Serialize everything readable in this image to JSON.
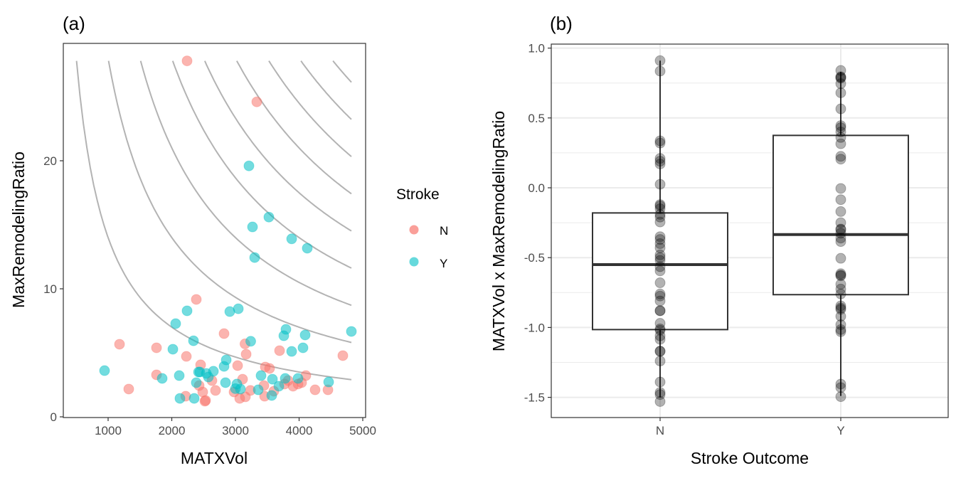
{
  "chart_data": [
    {
      "panel": "(a)",
      "type": "scatter",
      "title": "(a)",
      "xlabel": "MATXVol",
      "ylabel": "MaxRemodelingRatio",
      "xlim": [
        300,
        5050
      ],
      "ylim": [
        -0.3,
        29.4
      ],
      "xticks": [
        1000,
        2000,
        3000,
        4000,
        5000
      ],
      "yticks": [
        0,
        10,
        20
      ],
      "grid": false,
      "contours": {
        "description": "hyperbolic contours of MATXVol x MaxRemodelingRatio",
        "color": "#b3b3b3",
        "levels": [
          14000,
          28000,
          42000,
          56000,
          70000,
          84000,
          98000,
          112000,
          126000
        ],
        "x_range": [
          497,
          4821
        ],
        "y_max": 27.8
      },
      "legend": {
        "title": "Stroke",
        "position": "right",
        "entries": [
          {
            "label": "N",
            "color": "#F8766D"
          },
          {
            "label": "Y",
            "color": "#00BFC4"
          }
        ]
      },
      "series": [
        {
          "name": "N",
          "color": "#F8766D",
          "points": [
            [
              2240,
              27.8
            ],
            [
              3335,
              24.6
            ],
            [
              2385,
              9.17
            ],
            [
              2821,
              6.5
            ],
            [
              1179,
              5.67
            ],
            [
              1760,
              5.39
            ],
            [
              2229,
              4.72
            ],
            [
              3168,
              4.89
            ],
            [
              3693,
              5.17
            ],
            [
              4687,
              4.78
            ],
            [
              3034,
              4.0
            ],
            [
              2453,
              4.06
            ],
            [
              1760,
              3.28
            ],
            [
              1324,
              2.17
            ],
            [
              2631,
              2.83
            ],
            [
              2430,
              2.44
            ],
            [
              2486,
              1.94
            ],
            [
              2687,
              2.06
            ],
            [
              2218,
              1.61
            ],
            [
              2531,
              1.28
            ],
            [
              2520,
              1.22
            ],
            [
              3112,
              2.94
            ],
            [
              2978,
              1.94
            ],
            [
              3067,
              1.44
            ],
            [
              3156,
              1.56
            ],
            [
              3235,
              2.06
            ],
            [
              3447,
              2.44
            ],
            [
              3469,
              3.89
            ],
            [
              3536,
              3.78
            ],
            [
              3458,
              1.61
            ],
            [
              4106,
              3.22
            ],
            [
              3827,
              2.83
            ],
            [
              3905,
              2.39
            ],
            [
              3983,
              2.56
            ],
            [
              3771,
              2.56
            ],
            [
              4039,
              2.67
            ],
            [
              4251,
              2.11
            ],
            [
              4453,
              2.11
            ],
            [
              3603,
              2.0
            ],
            [
              3150,
              5.7
            ]
          ]
        },
        {
          "name": "Y",
          "color": "#00BFC4",
          "points": [
            [
              3212,
              19.6
            ],
            [
              3525,
              15.6
            ],
            [
              3268,
              14.83
            ],
            [
              3883,
              13.9
            ],
            [
              4128,
              13.17
            ],
            [
              3302,
              12.44
            ],
            [
              2911,
              8.22
            ],
            [
              3045,
              8.44
            ],
            [
              2240,
              8.28
            ],
            [
              2061,
              7.28
            ],
            [
              2341,
              5.94
            ],
            [
              3240,
              5.9
            ],
            [
              3793,
              6.83
            ],
            [
              3760,
              6.33
            ],
            [
              4095,
              6.39
            ],
            [
              4821,
              6.67
            ],
            [
              3883,
              5.11
            ],
            [
              4061,
              5.39
            ],
            [
              2017,
              5.28
            ],
            [
              944,
              3.61
            ],
            [
              1849,
              3.0
            ],
            [
              2117,
              3.22
            ],
            [
              2855,
              4.44
            ],
            [
              2821,
              3.94
            ],
            [
              2441,
              3.5
            ],
            [
              2542,
              3.39
            ],
            [
              2654,
              3.56
            ],
            [
              2575,
              3.11
            ],
            [
              2385,
              2.67
            ],
            [
              2128,
              1.44
            ],
            [
              2352,
              1.44
            ],
            [
              2844,
              2.67
            ],
            [
              3023,
              2.56
            ],
            [
              3078,
              2.17
            ],
            [
              3358,
              2.11
            ],
            [
              3402,
              3.22
            ],
            [
              3581,
              2.94
            ],
            [
              3782,
              3.0
            ],
            [
              3983,
              3.0
            ],
            [
              3682,
              2.39
            ],
            [
              4464,
              2.72
            ],
            [
              3570,
              1.67
            ],
            [
              2420,
              3.5
            ],
            [
              3000,
              2.2
            ]
          ]
        }
      ]
    },
    {
      "panel": "(b)",
      "type": "box",
      "title": "(b)",
      "xlabel": "Stroke Outcome",
      "ylabel": "MATXVol x MaxRemodelingRatio",
      "categories": [
        "N",
        "Y"
      ],
      "ylim": [
        -1.63,
        1.03
      ],
      "yticks": [
        1.0,
        0.5,
        0.0,
        -0.5,
        -1.0,
        -1.5
      ],
      "ytick_labels": [
        "1.0",
        "0.5",
        "0.0",
        "-0.5",
        "-1.0",
        "-1.5"
      ],
      "grid": true,
      "boxes": [
        {
          "category": "N",
          "whisker_high": 0.91,
          "q3": -0.18,
          "median": -0.55,
          "q1": -1.015,
          "whisker_low": -1.5
        },
        {
          "category": "Y",
          "whisker_high": 0.83,
          "q3": 0.375,
          "median": -0.335,
          "q1": -0.765,
          "whisker_low": -1.49
        }
      ],
      "points": {
        "color": "#000000",
        "opacity": 0.3,
        "N": [
          0.91,
          0.835,
          0.336,
          0.32,
          0.21,
          0.19,
          0.17,
          0.025,
          -0.12,
          -0.13,
          -0.15,
          -0.19,
          -0.21,
          -0.245,
          -0.35,
          -0.37,
          -0.4,
          -0.43,
          -0.48,
          -0.5,
          -0.52,
          -0.565,
          -0.595,
          -0.68,
          -0.76,
          -0.775,
          -0.81,
          -0.88,
          -0.88,
          -0.97,
          -1.01,
          -1.02,
          -1.06,
          -1.085,
          -1.17,
          -1.17,
          -1.24,
          -1.39,
          -1.465,
          -1.48,
          -1.53
        ],
        "Y": [
          0.84,
          0.795,
          0.785,
          0.79,
          0.745,
          0.68,
          0.565,
          0.445,
          0.43,
          0.4,
          0.36,
          0.315,
          0.225,
          0.205,
          -0.005,
          -0.085,
          -0.17,
          -0.25,
          -0.295,
          -0.3,
          -0.325,
          -0.36,
          -0.385,
          -0.505,
          -0.615,
          -0.63,
          -0.625,
          -0.69,
          -0.725,
          -0.76,
          -0.845,
          -0.86,
          -0.87,
          -0.92,
          -0.98,
          -1.015,
          -1.03,
          -1.405,
          -1.43,
          -1.495
        ]
      }
    }
  ]
}
